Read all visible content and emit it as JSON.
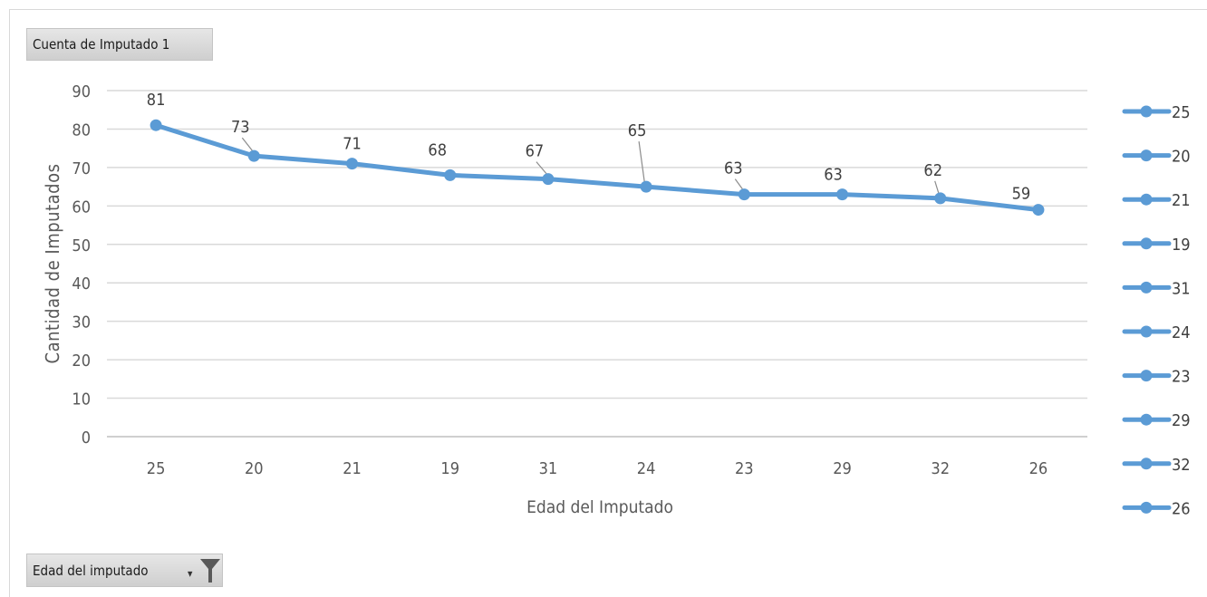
{
  "value_field_button": "Cuenta de Imputado 1",
  "axis_field_button": "Edad del imputado",
  "chart_data": {
    "type": "line",
    "categories": [
      "25",
      "20",
      "21",
      "19",
      "31",
      "24",
      "23",
      "29",
      "32",
      "26"
    ],
    "series": [
      {
        "values": [
          81,
          73,
          71,
          68,
          67,
          65,
          63,
          63,
          62,
          59
        ]
      }
    ],
    "data_labels": [
      "81",
      "73",
      "71",
      "68",
      "67",
      "65",
      "63",
      "63",
      "62",
      "59"
    ],
    "legend_entries": [
      "25",
      "20",
      "21",
      "19",
      "31",
      "24",
      "23",
      "29",
      "32",
      "26"
    ],
    "legend_position": "right",
    "xlabel": "Edad del Imputado",
    "ylabel": "Cantidad de Imputados",
    "ylim": [
      0,
      90
    ],
    "yticks": [
      "0",
      "10",
      "20",
      "30",
      "40",
      "50",
      "60",
      "70",
      "80",
      "90"
    ],
    "grid": true,
    "line_color": "#5b9bd5"
  }
}
